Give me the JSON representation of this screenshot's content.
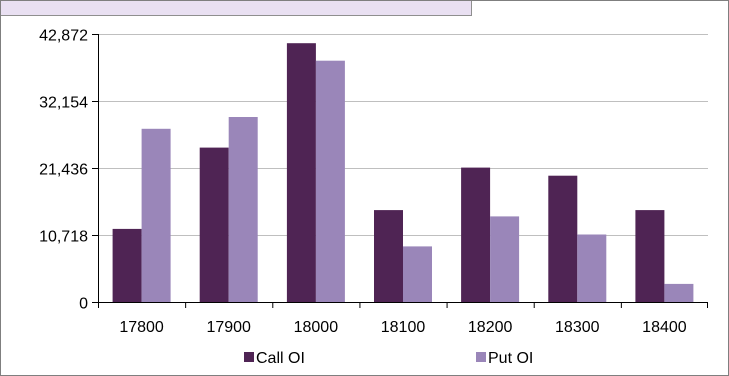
{
  "chart_data": {
    "type": "bar",
    "categories": [
      "17800",
      "17900",
      "18000",
      "18100",
      "18200",
      "18300",
      "18400"
    ],
    "series": [
      {
        "name": "Call OI",
        "values": [
          11700,
          24700,
          41400,
          14700,
          21500,
          20200,
          14700
        ],
        "color": "#4f2454"
      },
      {
        "name": "Put OI",
        "values": [
          27700,
          29600,
          38600,
          8900,
          13700,
          10800,
          2900
        ],
        "color": "#9a86b9"
      }
    ],
    "yticks": [
      "0",
      "10,718",
      "21,436",
      "32,154",
      "42,872"
    ],
    "ytick_values": [
      0,
      10718,
      21436,
      32154,
      42872
    ],
    "ylim": [
      0,
      42872
    ],
    "grid": true,
    "legend": "bottom",
    "title": "",
    "xlabel": "",
    "ylabel": ""
  },
  "colors": {
    "gridline": "#bfbfbf",
    "axis": "#000000",
    "header_strip": "#e9e0f2"
  }
}
